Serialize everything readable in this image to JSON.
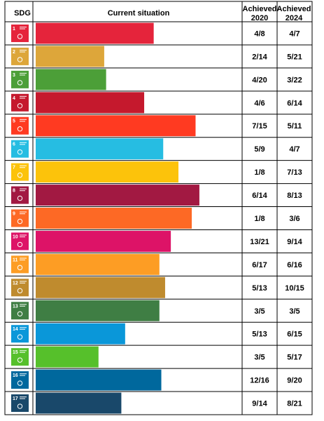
{
  "chart_data": {
    "type": "bar",
    "orientation": "horizontal",
    "headers": {
      "sdg": "SDG",
      "current": "Current situation",
      "achieved_2020": "Achieved\n2020",
      "achieved_2024": "Achieved\n2024"
    },
    "categories": [
      "1",
      "2",
      "3",
      "4",
      "5",
      "6",
      "7",
      "8",
      "9",
      "10",
      "11",
      "12",
      "13",
      "14",
      "15",
      "16",
      "17"
    ],
    "values": [
      0.62,
      0.36,
      0.37,
      0.57,
      0.84,
      0.67,
      0.75,
      0.86,
      0.82,
      0.71,
      0.65,
      0.68,
      0.65,
      0.47,
      0.33,
      0.66,
      0.45
    ],
    "xlim": [
      0,
      1
    ],
    "colors": [
      "#E5243B",
      "#DDA63A",
      "#4C9F38",
      "#C5192D",
      "#FF3A21",
      "#26BDE2",
      "#FCC30B",
      "#A21942",
      "#FD6925",
      "#DD1367",
      "#FD9D24",
      "#BF8B2E",
      "#3F7E44",
      "#0A97D9",
      "#56C02B",
      "#00689D",
      "#19486A"
    ],
    "achieved_2020": [
      "4/8",
      "2/14",
      "4/20",
      "4/6",
      "7/15",
      "5/9",
      "1/8",
      "6/14",
      "1/8",
      "13/21",
      "6/17",
      "5/13",
      "3/5",
      "5/13",
      "3/5",
      "12/16",
      "9/14"
    ],
    "achieved_2024": [
      "4/7",
      "5/21",
      "3/22",
      "6/14",
      "5/11",
      "4/7",
      "7/13",
      "8/13",
      "3/6",
      "9/14",
      "6/16",
      "10/15",
      "3/5",
      "6/15",
      "5/17",
      "9/20",
      "8/21"
    ]
  }
}
